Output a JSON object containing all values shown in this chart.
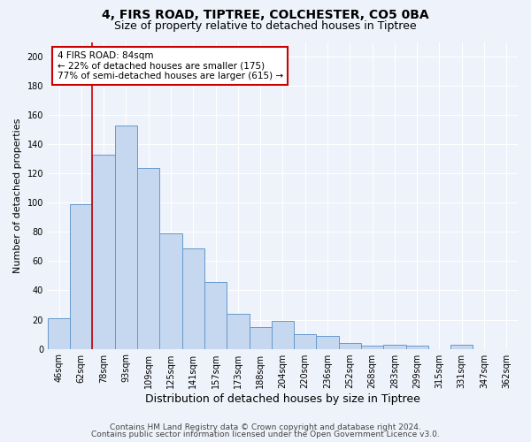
{
  "title1": "4, FIRS ROAD, TIPTREE, COLCHESTER, CO5 0BA",
  "title2": "Size of property relative to detached houses in Tiptree",
  "xlabel": "Distribution of detached houses by size in Tiptree",
  "ylabel": "Number of detached properties",
  "categories": [
    "46sqm",
    "62sqm",
    "78sqm",
    "93sqm",
    "109sqm",
    "125sqm",
    "141sqm",
    "157sqm",
    "173sqm",
    "188sqm",
    "204sqm",
    "220sqm",
    "236sqm",
    "252sqm",
    "268sqm",
    "283sqm",
    "299sqm",
    "315sqm",
    "331sqm",
    "347sqm",
    "362sqm"
  ],
  "values": [
    21,
    99,
    133,
    153,
    124,
    79,
    69,
    46,
    24,
    15,
    19,
    10,
    9,
    4,
    2,
    3,
    2,
    0,
    3,
    0,
    0
  ],
  "bar_color": "#c5d8f0",
  "bar_edge_color": "#6699cc",
  "background_color": "#eef2fa",
  "grid_color": "#ffffff",
  "vline_color": "#cc0000",
  "annotation_line1": "4 FIRS ROAD: 84sqm",
  "annotation_line2": "← 22% of detached houses are smaller (175)",
  "annotation_line3": "77% of semi-detached houses are larger (615) →",
  "annotation_box_color": "#ffffff",
  "annotation_box_edge": "#cc0000",
  "footer1": "Contains HM Land Registry data © Crown copyright and database right 2024.",
  "footer2": "Contains public sector information licensed under the Open Government Licence v3.0.",
  "ylim": [
    0,
    210
  ],
  "yticks": [
    0,
    20,
    40,
    60,
    80,
    100,
    120,
    140,
    160,
    180,
    200
  ],
  "title1_fontsize": 10,
  "title2_fontsize": 9,
  "xlabel_fontsize": 9,
  "ylabel_fontsize": 8,
  "tick_fontsize": 7,
  "annotation_fontsize": 7.5,
  "footer_fontsize": 6.5
}
